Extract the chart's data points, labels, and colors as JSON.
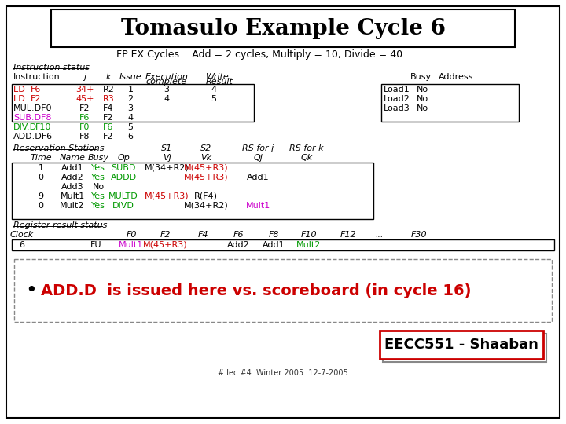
{
  "title": "Tomasulo Example Cycle 6",
  "subtitle": "FP EX Cycles :  Add = 2 cycles, Multiply = 10, Divide = 40",
  "bg_color": "#ffffff",
  "bullet_text": "ADD.D  is issued here vs. scoreboard (in cycle 16)",
  "bullet_color": "#cc0000",
  "eecc_text": "EECC551 - Shaaban",
  "footer_text": "# lec #4  Winter 2005  12-7-2005",
  "instructions": [
    {
      "parts": [
        [
          "LD  ",
          "#cc0000"
        ],
        [
          "F6",
          "#cc0000"
        ]
      ],
      "j": [
        "34+",
        "#cc0000"
      ],
      "k": [
        "R2",
        "#000000"
      ],
      "issue": "1",
      "exec": "3",
      "result": "4"
    },
    {
      "parts": [
        [
          "LD  ",
          "#cc0000"
        ],
        [
          "F2",
          "#cc0000"
        ]
      ],
      "j": [
        "45+",
        "#cc0000"
      ],
      "k": [
        "R3",
        "#cc0000"
      ],
      "issue": "2",
      "exec": "4",
      "result": "5"
    },
    {
      "parts": [
        [
          "MUL.DF0",
          "#000000"
        ]
      ],
      "j": [
        "F2",
        "#000000"
      ],
      "k": [
        "F4",
        "#000000"
      ],
      "issue": "3",
      "exec": "",
      "result": ""
    },
    {
      "parts": [
        [
          "SUB.DF8",
          "#cc00cc"
        ]
      ],
      "j": [
        "F6",
        "#009900"
      ],
      "k": [
        "F2",
        "#000000"
      ],
      "issue": "4",
      "exec": "",
      "result": ""
    },
    {
      "parts": [
        [
          "DIV.D",
          "#009900"
        ],
        [
          "F10",
          "#009900"
        ]
      ],
      "j": [
        "F0",
        "#009900"
      ],
      "k": [
        "F6",
        "#009900"
      ],
      "issue": "5",
      "exec": "",
      "result": ""
    },
    {
      "parts": [
        [
          "ADD.DF6",
          "#000000"
        ]
      ],
      "j": [
        "F8",
        "#000000"
      ],
      "k": [
        "F2",
        "#000000"
      ],
      "issue": "6",
      "exec": "",
      "result": ""
    }
  ],
  "load_stations": [
    {
      "name": "Load1",
      "busy": "No"
    },
    {
      "name": "Load2",
      "busy": "No"
    },
    {
      "name": "Load3",
      "busy": "No"
    }
  ],
  "reservation_stations": [
    {
      "time": "1",
      "name": "Add1",
      "busy": "Yes",
      "op": "SUBD",
      "vj": "M(34+R2)",
      "vk": "M(45+R3)",
      "qj": "",
      "qk": "",
      "op_color": "#009900",
      "vj_color": "#000000",
      "vk_color": "#cc0000",
      "qj_color": "#000000",
      "qk_color": "#000000"
    },
    {
      "time": "0",
      "name": "Add2",
      "busy": "Yes",
      "op": "ADDD",
      "vj": "",
      "vk": "M(45+R3)",
      "qj": "Add1",
      "qk": "",
      "op_color": "#009900",
      "vj_color": "#000000",
      "vk_color": "#cc0000",
      "qj_color": "#000000",
      "qk_color": "#000000"
    },
    {
      "time": "",
      "name": "Add3",
      "busy": "No",
      "op": "",
      "vj": "",
      "vk": "",
      "qj": "",
      "qk": "",
      "op_color": "#000000",
      "vj_color": "#000000",
      "vk_color": "#000000",
      "qj_color": "#000000",
      "qk_color": "#000000"
    },
    {
      "time": "9",
      "name": "Mult1",
      "busy": "Yes",
      "op": "MULTD",
      "vj": "M(45+R3)",
      "vk": "R(F4)",
      "qj": "",
      "qk": "",
      "op_color": "#009900",
      "vj_color": "#cc0000",
      "vk_color": "#000000",
      "qj_color": "#000000",
      "qk_color": "#000000"
    },
    {
      "time": "0",
      "name": "Mult2",
      "busy": "Yes",
      "op": "DIVD",
      "vj": "",
      "vk": "M(34+R2)",
      "qj": "Mult1",
      "qk": "",
      "op_color": "#009900",
      "vj_color": "#000000",
      "vk_color": "#000000",
      "qj_color": "#cc00cc",
      "qk_color": "#000000"
    }
  ],
  "clock_labels": [
    "Clock",
    "",
    "",
    "F0",
    "F2",
    "F4",
    "F6",
    "F8",
    "F10",
    "F12",
    "...",
    "F30"
  ],
  "clock_row": [
    "6",
    "",
    "FU",
    "Mult1",
    "M(45+R3)",
    "",
    "Add2",
    "Add1",
    "Mult2",
    "",
    "",
    ""
  ],
  "clock_row_colors": [
    "#000000",
    "#000000",
    "#000000",
    "#cc00cc",
    "#cc0000",
    "#000000",
    "#000000",
    "#000000",
    "#009900",
    "#000000",
    "#000000",
    "#000000"
  ],
  "clock_x": [
    28,
    80,
    122,
    167,
    210,
    258,
    303,
    348,
    393,
    443,
    483,
    533
  ]
}
